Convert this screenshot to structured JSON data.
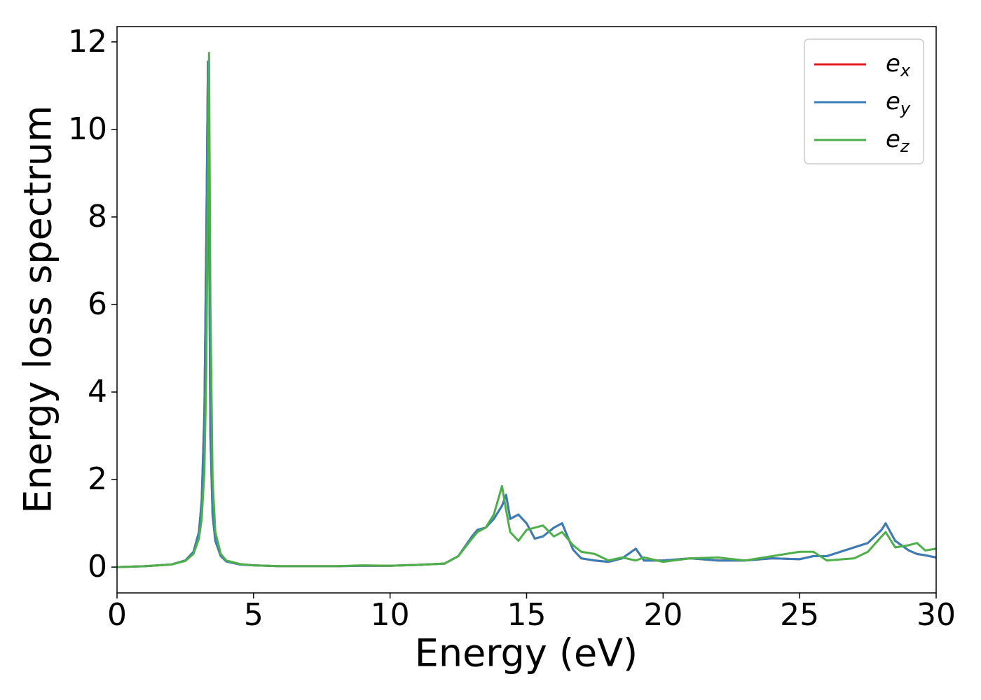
{
  "chart_data": {
    "type": "line",
    "xlabel": "Energy (eV)",
    "ylabel": "Energy loss spectrum",
    "x": [
      0,
      1,
      2,
      2.5,
      2.8,
      3.0,
      3.1,
      3.2,
      3.27,
      3.33,
      3.37,
      3.42,
      3.5,
      3.6,
      3.8,
      4.0,
      4.5,
      5,
      6,
      7,
      8,
      9,
      10,
      11,
      12,
      12.5,
      13,
      13.2,
      13.5,
      13.8,
      14.1,
      14.25,
      14.4,
      14.7,
      15,
      15.3,
      15.6,
      16,
      16.3,
      16.7,
      17,
      17.5,
      18,
      18.5,
      19,
      19.3,
      20,
      21,
      22,
      23,
      24,
      25,
      25.5,
      26,
      27,
      27.5,
      28,
      28.15,
      28.5,
      29,
      29.3,
      29.6,
      30
    ],
    "series": [
      {
        "name": "e_x",
        "color": "#e41a1c",
        "values": [
          0,
          0.02,
          0.06,
          0.15,
          0.35,
          0.8,
          1.5,
          3.5,
          7.5,
          11.55,
          8.0,
          3.0,
          1.2,
          0.6,
          0.25,
          0.13,
          0.06,
          0.04,
          0.02,
          0.02,
          0.02,
          0.03,
          0.03,
          0.05,
          0.08,
          0.25,
          0.7,
          0.85,
          0.9,
          1.1,
          1.4,
          1.65,
          1.1,
          1.2,
          1.0,
          0.65,
          0.7,
          0.9,
          1.0,
          0.4,
          0.2,
          0.15,
          0.12,
          0.2,
          0.42,
          0.15,
          0.15,
          0.2,
          0.15,
          0.15,
          0.2,
          0.18,
          0.25,
          0.25,
          0.45,
          0.55,
          0.85,
          1.0,
          0.6,
          0.38,
          0.3,
          0.27,
          0.22
        ]
      },
      {
        "name": "e_y",
        "color": "#377eb8",
        "values": [
          0,
          0.02,
          0.06,
          0.15,
          0.35,
          0.8,
          1.5,
          3.5,
          7.5,
          11.55,
          8.0,
          3.0,
          1.2,
          0.6,
          0.25,
          0.13,
          0.06,
          0.04,
          0.02,
          0.02,
          0.02,
          0.03,
          0.03,
          0.05,
          0.08,
          0.25,
          0.7,
          0.85,
          0.9,
          1.1,
          1.4,
          1.65,
          1.1,
          1.2,
          1.0,
          0.65,
          0.7,
          0.9,
          1.0,
          0.4,
          0.2,
          0.15,
          0.12,
          0.2,
          0.42,
          0.15,
          0.15,
          0.2,
          0.15,
          0.15,
          0.2,
          0.18,
          0.25,
          0.25,
          0.45,
          0.55,
          0.85,
          1.0,
          0.6,
          0.38,
          0.3,
          0.27,
          0.22
        ]
      },
      {
        "name": "e_z",
        "color": "#4daf4a",
        "values": [
          0,
          0.02,
          0.06,
          0.14,
          0.3,
          0.65,
          1.1,
          2.2,
          4.5,
          9.0,
          11.75,
          6.0,
          2.0,
          0.8,
          0.3,
          0.15,
          0.07,
          0.04,
          0.02,
          0.02,
          0.02,
          0.04,
          0.03,
          0.05,
          0.08,
          0.25,
          0.65,
          0.8,
          0.9,
          1.2,
          1.85,
          1.3,
          0.8,
          0.6,
          0.85,
          0.9,
          0.95,
          0.7,
          0.8,
          0.5,
          0.35,
          0.3,
          0.15,
          0.22,
          0.15,
          0.22,
          0.12,
          0.2,
          0.22,
          0.15,
          0.25,
          0.35,
          0.35,
          0.15,
          0.2,
          0.35,
          0.7,
          0.8,
          0.45,
          0.5,
          0.55,
          0.38,
          0.42
        ]
      }
    ],
    "xlim": [
      0,
      30
    ],
    "xticks": [
      0,
      5,
      10,
      15,
      20,
      25,
      30
    ],
    "ylim": [
      -0.59,
      12.35
    ],
    "yticks": [
      0,
      2,
      4,
      6,
      8,
      10,
      12
    ],
    "legend": "upper right",
    "grid": false
  }
}
